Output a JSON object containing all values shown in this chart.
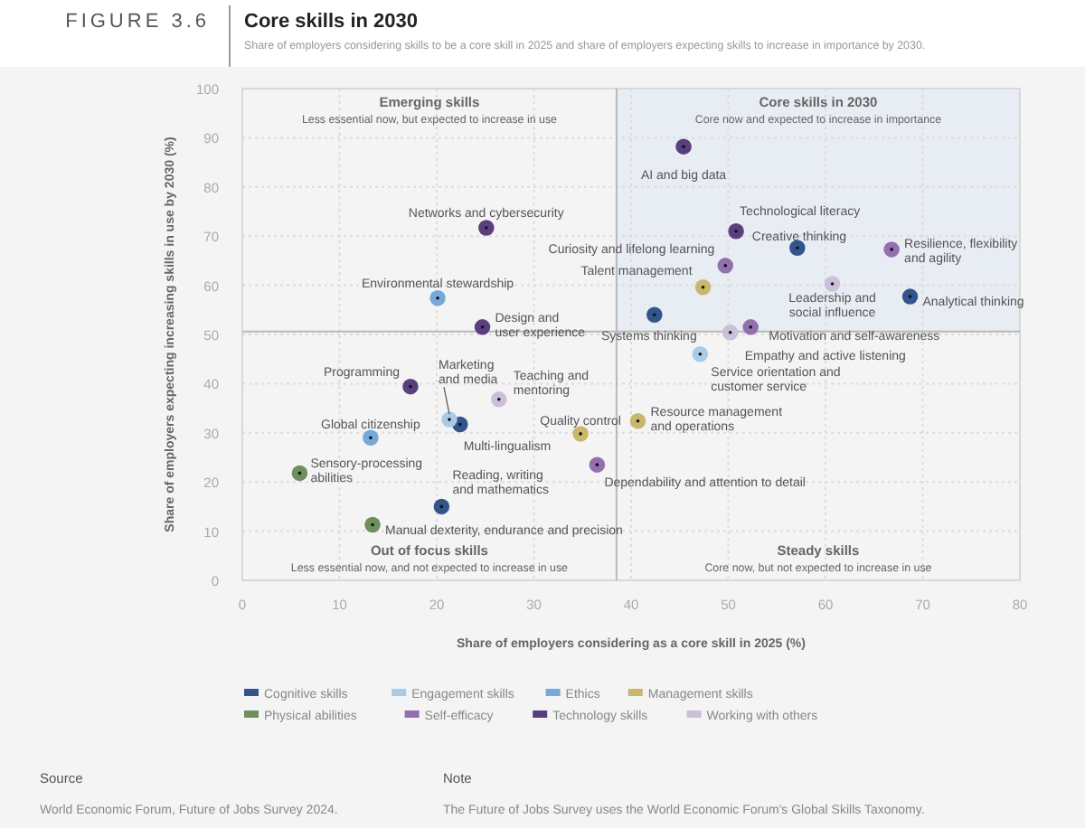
{
  "chart_data": {
    "type": "scatter",
    "title": "Core skills in 2030",
    "subtitle": "Share of employers considering skills to be a core skill in 2025 and share of employers expecting skills to increase in importance by 2030.",
    "xlabel": "Share of employers considering as a core skill in 2025 (%)",
    "ylabel": "Share of employers expecting increasing skills in use by 2030 (%)",
    "xlim": [
      0,
      80
    ],
    "xticks": [
      0,
      10,
      20,
      30,
      40,
      50,
      60,
      70,
      80
    ],
    "ylim": [
      0,
      100
    ],
    "yticks": [
      0,
      10,
      20,
      30,
      40,
      50,
      60,
      70,
      80,
      90,
      100
    ],
    "grid": true,
    "legend": "bottom",
    "marker": "circle",
    "ref_lines": [
      {
        "axis": "x",
        "value": 38.5,
        "color": "#b8b8b8"
      },
      {
        "axis": "y",
        "value": 50.6,
        "color": "#b8b8b8"
      }
    ],
    "bands": [
      {
        "axis": "x",
        "from": 38.5,
        "to": 80,
        "color": "#e7edf3"
      }
    ],
    "series": [
      {
        "name": "Cognitive skills",
        "color": "#34558b",
        "x": [
          57.1,
          68.7,
          42.4,
          22.4,
          20.5
        ],
        "values": [
          67.6,
          57.7,
          54,
          31.7,
          15
        ]
      },
      {
        "name": "Engagement skills",
        "color": "#a9cbe6",
        "x": [
          47.1,
          21.3
        ],
        "values": [
          46,
          32.7
        ]
      },
      {
        "name": "Ethics",
        "color": "#74a9d8",
        "x": [
          20.1,
          13.2
        ],
        "values": [
          57.4,
          29
        ]
      },
      {
        "name": "Management skills",
        "color": "#c9b86a",
        "x": [
          47.4,
          34.8,
          40.7
        ],
        "values": [
          59.6,
          29.8,
          32.4
        ]
      },
      {
        "name": "Physical abilities",
        "color": "#6e8f5e",
        "x": [
          5.9,
          13.4
        ],
        "values": [
          21.8,
          11.3
        ]
      },
      {
        "name": "Self-efficacy",
        "color": "#946fae",
        "x": [
          66.8,
          49.7,
          52.3,
          36.5
        ],
        "values": [
          67.3,
          64,
          51.5,
          23.5
        ]
      },
      {
        "name": "Technology skills",
        "color": "#5a3f7c",
        "x": [
          45.4,
          50.8,
          25.1,
          17.3,
          24.7
        ],
        "values": [
          88.2,
          71,
          71.7,
          39.4,
          51.5
        ]
      },
      {
        "name": "Working with others",
        "color": "#cbbfda",
        "x": [
          60.7,
          50.2,
          26.4
        ],
        "values": [
          60.3,
          50.4,
          36.8
        ]
      }
    ],
    "annotations": [
      "FIGURE 3.6",
      "Emerging skills",
      "Less essential now, but expected to increase in use",
      "Core skills in 2030",
      "Core now and expected to increase in importance",
      "Out of focus skills",
      "Less essential now, and not expected to increase in use",
      "Steady skills",
      "Core now, but not expected to increase in use",
      "Source",
      "World Economic Forum, Future of Jobs Survey 2024.",
      "Note",
      "The Future of Jobs Survey uses the World Economic Forum's Global Skills Taxonomy.",
      {
        "text": "AI and big data",
        "x": 45.4,
        "y": 88.2
      },
      {
        "text": "Technological literacy",
        "x": 50.8,
        "y": 71
      },
      {
        "text": "Creative thinking",
        "x": 57.1,
        "y": 67.6
      },
      {
        "text": "Resilience, flexibility and agility",
        "x": 66.8,
        "y": 67.3
      },
      {
        "text": "Curiosity and lifelong learning",
        "x": 49.7,
        "y": 64
      },
      {
        "text": "Talent management",
        "x": 47.4,
        "y": 59.6
      },
      {
        "text": "Leadership and social influence",
        "x": 60.7,
        "y": 60.3
      },
      {
        "text": "Analytical thinking",
        "x": 68.7,
        "y": 57.7
      },
      {
        "text": "Systems thinking",
        "x": 42.4,
        "y": 54
      },
      {
        "text": "Motivation and self-awareness",
        "x": 52.3,
        "y": 51.5
      },
      {
        "text": "Empathy and active listening",
        "x": 50.2,
        "y": 50.4
      },
      {
        "text": "Service orientation and customer service",
        "x": 47.1,
        "y": 46
      },
      {
        "text": "Resource management and operations",
        "x": 40.7,
        "y": 32.4
      },
      {
        "text": "Dependability and attention to detail",
        "x": 36.5,
        "y": 23.5
      },
      {
        "text": "Quality control",
        "x": 34.8,
        "y": 29.8
      },
      {
        "text": "Networks and cybersecurity",
        "x": 25.1,
        "y": 71.7
      },
      {
        "text": "Environmental stewardship",
        "x": 20.1,
        "y": 57.4
      },
      {
        "text": "Design and user experience",
        "x": 24.7,
        "y": 51.5
      },
      {
        "text": "Programming",
        "x": 17.3,
        "y": 39.4
      },
      {
        "text": "Marketing and media",
        "x": 21.3,
        "y": 32.7
      },
      {
        "text": "Multi-lingualism",
        "x": 22.4,
        "y": 31.7
      },
      {
        "text": "Teaching and mentoring",
        "x": 26.4,
        "y": 36.8
      },
      {
        "text": "Global citizenship",
        "x": 13.2,
        "y": 29
      },
      {
        "text": "Sensory-processing abilities",
        "x": 5.9,
        "y": 21.8
      },
      {
        "text": "Reading, writing and mathematics",
        "x": 20.5,
        "y": 15
      },
      {
        "text": "Manual dexterity, endurance and precision",
        "x": 13.4,
        "y": 11.3
      }
    ]
  }
}
